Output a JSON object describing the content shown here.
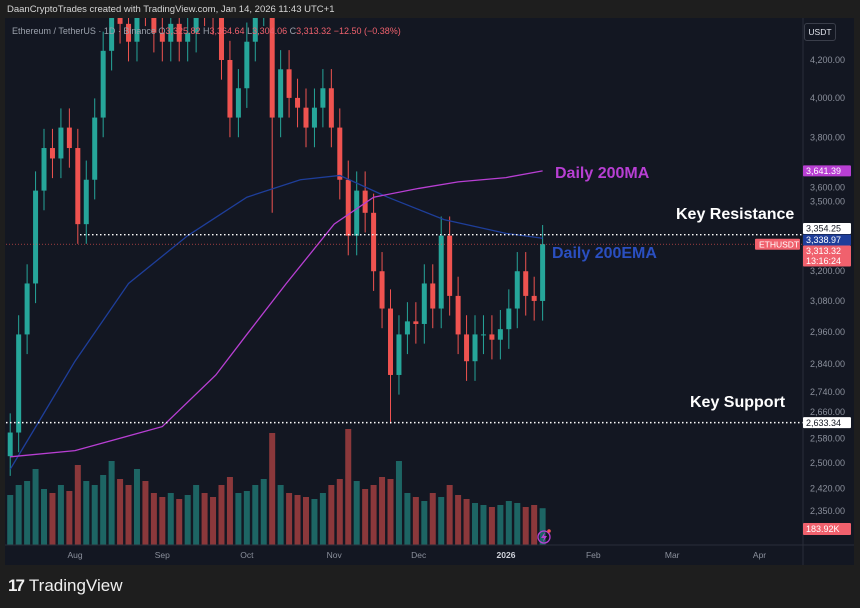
{
  "header": {
    "credit": "DaanCryptoTrades created with TradingView.com, Jan 14, 2026 11:43 UTC+1"
  },
  "legend": {
    "symbol": "Ethereum / TetherUS · 1D · Binance",
    "o_label": "O",
    "open": "3,325.82",
    "h_label": "H",
    "high": "3,364.64",
    "l_label": "L",
    "low": "3,304.06",
    "c_label": "C",
    "close": "3,313.32",
    "change": "−12.50 (−0.38%)"
  },
  "currency": "USDT",
  "annotations": {
    "resistance": "Key Resistance",
    "support": "Key Support",
    "ma": "Daily 200MA",
    "ema": "Daily 200EMA"
  },
  "footer": {
    "logo_mark": "17",
    "logo_text": "TradingView"
  },
  "colors": {
    "up": "#26a69a",
    "down": "#ef5350",
    "ma": "#b83fd3",
    "ema": "#1e3e9a",
    "background": "#131722"
  },
  "chart_data": {
    "type": "candlestick",
    "scale": "log",
    "ylim": [
      2300,
      4300
    ],
    "y_ticks": [
      "4,200.00",
      "4,000.00",
      "3,800.00",
      "3,600.00",
      "3,500.00",
      "3,200.00",
      "3,080.00",
      "2,960.00",
      "2,840.00",
      "2,740.00",
      "2,660.00",
      "2,580.00",
      "2,500.00",
      "2,420.00",
      "2,350.00"
    ],
    "x_ticks": [
      "Aug",
      "Sep",
      "Oct",
      "Nov",
      "Dec",
      "2026",
      "Feb",
      "Mar",
      "Apr"
    ],
    "x_tick_dates": [
      "2025-08-01",
      "2025-09-01",
      "2025-10-01",
      "2025-11-01",
      "2025-12-01",
      "2026-01-01",
      "2026-02-01",
      "2026-03-01",
      "2026-04-01"
    ],
    "candles": {
      "dates": [
        "2025-07-09",
        "2025-07-12",
        "2025-07-15",
        "2025-07-18",
        "2025-07-21",
        "2025-07-24",
        "2025-07-27",
        "2025-07-30",
        "2025-08-02",
        "2025-08-05",
        "2025-08-08",
        "2025-08-11",
        "2025-08-14",
        "2025-08-17",
        "2025-08-20",
        "2025-08-23",
        "2025-08-26",
        "2025-08-29",
        "2025-09-01",
        "2025-09-04",
        "2025-09-07",
        "2025-09-10",
        "2025-09-13",
        "2025-09-16",
        "2025-09-19",
        "2025-09-22",
        "2025-09-25",
        "2025-09-28",
        "2025-10-01",
        "2025-10-04",
        "2025-10-07",
        "2025-10-10",
        "2025-10-13",
        "2025-10-16",
        "2025-10-19",
        "2025-10-22",
        "2025-10-25",
        "2025-10-28",
        "2025-10-31",
        "2025-11-03",
        "2025-11-06",
        "2025-11-09",
        "2025-11-12",
        "2025-11-15",
        "2025-11-18",
        "2025-11-21",
        "2025-11-24",
        "2025-11-27",
        "2025-11-30",
        "2025-12-03",
        "2025-12-06",
        "2025-12-09",
        "2025-12-12",
        "2025-12-15",
        "2025-12-18",
        "2025-12-21",
        "2025-12-24",
        "2025-12-27",
        "2025-12-30",
        "2026-01-02",
        "2026-01-05",
        "2026-01-08",
        "2026-01-11",
        "2026-01-14"
      ],
      "close": [
        2600,
        2950,
        3150,
        3550,
        3750,
        3700,
        3850,
        3750,
        3400,
        3600,
        3900,
        4250,
        4600,
        4400,
        4300,
        4700,
        4500,
        4350,
        4300,
        4400,
        4300,
        4350,
        4650,
        4500,
        4450,
        4200,
        3900,
        4050,
        4300,
        4500,
        4650,
        3900,
        4150,
        4000,
        3950,
        3850,
        3950,
        4050,
        3850,
        3600,
        3350,
        3550,
        3450,
        3200,
        3050,
        2800,
        2950,
        3000,
        2990,
        3150,
        3050,
        3350,
        3100,
        2950,
        2850,
        2950,
        2950,
        2930,
        2970,
        3050,
        3200,
        3100,
        3080,
        3313.32
      ],
      "volume_k": [
        250,
        300,
        320,
        380,
        280,
        260,
        300,
        270,
        400,
        320,
        300,
        350,
        420,
        330,
        300,
        380,
        320,
        260,
        240,
        260,
        230,
        250,
        300,
        260,
        240,
        300,
        340,
        260,
        270,
        300,
        330,
        560,
        300,
        260,
        250,
        240,
        230,
        260,
        300,
        330,
        580,
        320,
        280,
        300,
        340,
        330,
        420,
        260,
        240,
        220,
        260,
        240,
        300,
        250,
        230,
        210,
        200,
        190,
        200,
        220,
        210,
        190,
        200,
        183.92
      ]
    },
    "ma200": {
      "dates": [
        "2025-07-09",
        "2025-08-01",
        "2025-09-01",
        "2025-09-20",
        "2025-10-01",
        "2025-10-15",
        "2025-11-01",
        "2025-11-15",
        "2025-12-01",
        "2025-12-15",
        "2026-01-01",
        "2026-01-14"
      ],
      "values": [
        2520,
        2540,
        2620,
        2800,
        2950,
        3150,
        3400,
        3520,
        3560,
        3590,
        3610,
        3641.39
      ]
    },
    "ema200": {
      "dates": [
        "2025-07-09",
        "2025-07-20",
        "2025-08-01",
        "2025-08-20",
        "2025-09-10",
        "2025-10-01",
        "2025-10-20",
        "2025-11-03",
        "2025-11-20",
        "2025-12-10",
        "2026-01-01",
        "2026-01-14"
      ],
      "values": [
        2480,
        2650,
        2850,
        3150,
        3350,
        3520,
        3600,
        3620,
        3520,
        3420,
        3360,
        3338.97
      ]
    },
    "levels": {
      "resistance": 3354.25,
      "support": 2633.34
    },
    "price_labels": {
      "ma": "3,641.39",
      "resistance": "3,354.25",
      "ema": "3,338.97",
      "symbol": "ETHUSDT",
      "last": "3,313.32",
      "countdown": "13:16:24",
      "support": "2,633.34",
      "volume": "183.92K"
    }
  }
}
